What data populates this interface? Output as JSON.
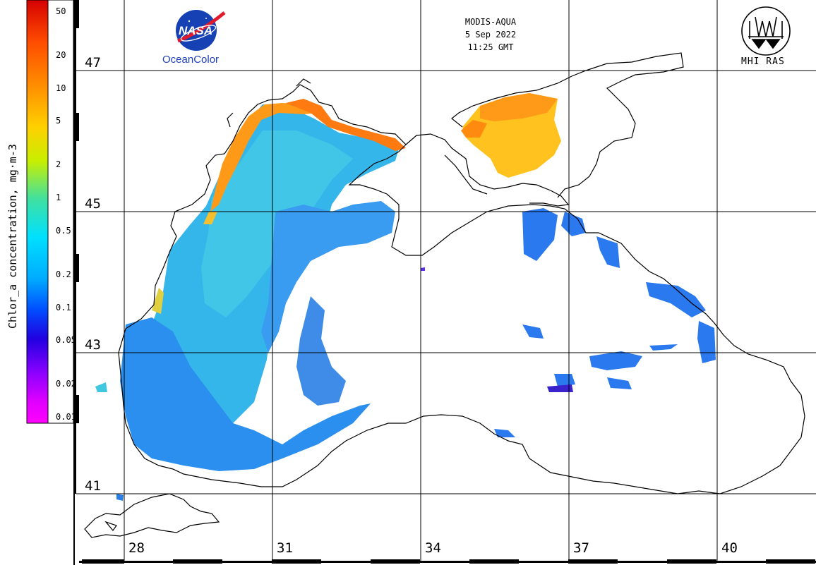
{
  "header": {
    "sensor": "MODIS-AQUA",
    "date": "5 Sep 2022",
    "time": "11:25 GMT"
  },
  "logos": {
    "nasa_label": "OceanColor",
    "nasa_badge": "NASA",
    "mhi_label": "MHI RAS"
  },
  "colorbar": {
    "title": "Chlor_a concentration, mg·m-3",
    "ticks": [
      "50",
      "20",
      "10",
      "5",
      "2",
      "1",
      "0.5",
      "0.2",
      "0.1",
      "0.05",
      "0.02",
      "0.01"
    ],
    "colors": [
      "#d40000",
      "#ff4d00",
      "#ff8c00",
      "#ffd000",
      "#c8ef00",
      "#40e0a0",
      "#00e0ff",
      "#00aaff",
      "#0050ff",
      "#2000e0",
      "#8a00ff",
      "#e000ff",
      "#ff00ff"
    ]
  },
  "grid": {
    "latitudes": [
      "47",
      "45",
      "43",
      "41"
    ],
    "longitudes": [
      "28",
      "31",
      "34",
      "37",
      "40"
    ]
  },
  "palette": {
    "open_sea_blue": "#2e9df0",
    "deep_blue": "#1a66e8",
    "shelf_cyan": "#2fb8e6",
    "coastal_orange": "#ff9a10",
    "azov_yellow": "#ffc21a",
    "land": "#ffffff",
    "coast": "#000000"
  }
}
